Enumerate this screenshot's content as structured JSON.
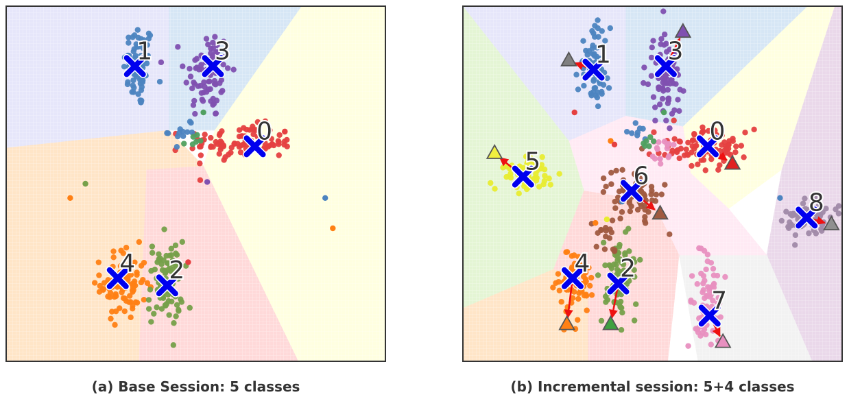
{
  "chart_data": [
    {
      "type": "scatter",
      "caption": "(a) Base Session: 5 classes",
      "xlim": [
        0,
        100
      ],
      "ylim": [
        0,
        100
      ],
      "grid": false,
      "regions": [
        {
          "class": 1,
          "color": "#e6e6fa",
          "polygon": [
            [
              0,
              100
            ],
            [
              43,
              100
            ],
            [
              43,
              65
            ],
            [
              0,
              60
            ]
          ]
        },
        {
          "class": 3,
          "color": "#d6e6f5",
          "polygon": [
            [
              43,
              100
            ],
            [
              78,
              100
            ],
            [
              55,
              65
            ],
            [
              43,
              65
            ]
          ]
        },
        {
          "class": 0,
          "color": "#ffffe0",
          "polygon": [
            [
              78,
              100
            ],
            [
              100,
              100
            ],
            [
              100,
              0
            ],
            [
              77,
              0
            ],
            [
              52,
              55
            ],
            [
              55,
              65
            ]
          ]
        },
        {
          "class": 2,
          "color": "#ffd9d9",
          "polygon": [
            [
              37,
              54
            ],
            [
              52,
              55
            ],
            [
              77,
              0
            ],
            [
              35,
              0
            ]
          ]
        },
        {
          "class": 4,
          "color": "#ffe5c7",
          "polygon": [
            [
              0,
              60
            ],
            [
              43,
              65
            ],
            [
              52,
              55
            ],
            [
              37,
              54
            ],
            [
              35,
              0
            ],
            [
              0,
              0
            ]
          ]
        }
      ],
      "clusters": [
        {
          "label": "1",
          "color": "#4c84c0",
          "cx": 35,
          "cy": 83,
          "sx": 2.0,
          "sy": 6.0,
          "n": 70
        },
        {
          "label": "3",
          "color": "#8050b0",
          "cx": 53,
          "cy": 81,
          "sx": 3.0,
          "sy": 6.5,
          "n": 80
        },
        {
          "label": "0",
          "color": "#e54040",
          "cx": 62,
          "cy": 61.5,
          "sx": 7.0,
          "sy": 2.5,
          "n": 95
        },
        {
          "label": "4",
          "color": "#ff8014",
          "cx": 31,
          "cy": 22,
          "sx": 3.0,
          "sy": 5.0,
          "n": 90
        },
        {
          "label": "2",
          "color": "#76a04a",
          "cx": 42,
          "cy": 22,
          "sx": 2.3,
          "sy": 6.0,
          "n": 80
        },
        {
          "label": "",
          "color": "#4c84c0",
          "cx": 46.5,
          "cy": 65,
          "sx": 1.8,
          "sy": 2.0,
          "n": 12
        },
        {
          "label": "",
          "color": "#50a060",
          "cx": 50,
          "cy": 61.5,
          "sx": 1.5,
          "sy": 1.2,
          "n": 6
        }
      ],
      "outliers": [
        {
          "x": 21,
          "y": 50,
          "color": "#76a04a"
        },
        {
          "x": 17,
          "y": 46,
          "color": "#ff8014"
        },
        {
          "x": 84,
          "y": 46,
          "color": "#4c84c0"
        },
        {
          "x": 86,
          "y": 37.5,
          "color": "#ff8014"
        },
        {
          "x": 53,
          "y": 50.5,
          "color": "#8050b0"
        },
        {
          "x": 48,
          "y": 28,
          "color": "#e54040"
        },
        {
          "x": 52,
          "y": 70,
          "color": "#50a060"
        }
      ],
      "prototypes": [
        {
          "label": "1",
          "x": 34,
          "y": 83
        },
        {
          "label": "3",
          "x": 54.5,
          "y": 83
        },
        {
          "label": "0",
          "x": 65.5,
          "y": 60.5
        },
        {
          "label": "4",
          "x": 29.5,
          "y": 23.5
        },
        {
          "label": "2",
          "x": 42.5,
          "y": 21.5
        }
      ],
      "arrows": []
    },
    {
      "type": "scatter",
      "caption": "(b) Incremental session: 5+4 classes",
      "xlim": [
        0,
        100
      ],
      "ylim": [
        0,
        100
      ],
      "grid": false,
      "regions": [
        {
          "class": 1,
          "color": "#e6e6fa",
          "polygon": [
            [
              0,
              100
            ],
            [
              43,
              100
            ],
            [
              43,
              69
            ],
            [
              28,
              62
            ]
          ]
        },
        {
          "class": 3,
          "color": "#d6e6f5",
          "polygon": [
            [
              43,
              100
            ],
            [
              91,
              100
            ],
            [
              58,
              66
            ],
            [
              43,
              69
            ]
          ]
        },
        {
          "class": 0,
          "color": "#ffffe0",
          "polygon": [
            [
              91,
              100
            ],
            [
              98,
              100
            ],
            [
              84,
              54
            ],
            [
              70,
              43
            ],
            [
              60,
              53
            ],
            [
              58,
              66
            ]
          ]
        },
        {
          "class": 8,
          "color": "#ead8ea",
          "polygon": [
            [
              98,
              100
            ],
            [
              100,
              100
            ],
            [
              100,
              0
            ],
            [
              92,
              0
            ],
            [
              80,
              30
            ],
            [
              84,
              54
            ]
          ]
        },
        {
          "class": 7,
          "color": "#f2f2f2",
          "polygon": [
            [
              57,
              30
            ],
            [
              80,
              30
            ],
            [
              92,
              0
            ],
            [
              62,
              0
            ]
          ]
        },
        {
          "class": 6,
          "color": "#ffeaf4",
          "polygon": [
            [
              28,
              62
            ],
            [
              43,
              69
            ],
            [
              58,
              66
            ],
            [
              60,
              53
            ],
            [
              70,
              43
            ],
            [
              80,
              30
            ],
            [
              57,
              30
            ],
            [
              50,
              45
            ],
            [
              32,
              48
            ]
          ]
        },
        {
          "class": 5,
          "color": "#e4f5d4",
          "polygon": [
            [
              0,
              100
            ],
            [
              28,
              62
            ],
            [
              32,
              48
            ],
            [
              24,
              26
            ],
            [
              0,
              15
            ]
          ]
        },
        {
          "class": 2,
          "color": "#ffd9d9",
          "polygon": [
            [
              32,
              48
            ],
            [
              50,
              45
            ],
            [
              57,
              30
            ],
            [
              54,
              0
            ],
            [
              33,
              0
            ],
            [
              33,
              22
            ],
            [
              24,
              26
            ]
          ]
        },
        {
          "class": 4,
          "color": "#ffe5c7",
          "polygon": [
            [
              0,
              15
            ],
            [
              24,
              26
            ],
            [
              33,
              22
            ],
            [
              33,
              0
            ],
            [
              0,
              0
            ]
          ]
        }
      ],
      "clusters": [
        {
          "label": "1",
          "color": "#4c84c0",
          "cx": 34.5,
          "cy": 83,
          "sx": 2.0,
          "sy": 5.5,
          "n": 70
        },
        {
          "label": "3",
          "color": "#8050b0",
          "cx": 53.5,
          "cy": 80,
          "sx": 2.5,
          "sy": 6.0,
          "n": 80
        },
        {
          "label": "0",
          "color": "#e54040",
          "cx": 64,
          "cy": 60,
          "sx": 6.5,
          "sy": 2.5,
          "n": 90
        },
        {
          "label": "5",
          "color": "#e8ec30",
          "cx": 16.5,
          "cy": 52.5,
          "sx": 3.5,
          "sy": 2.5,
          "n": 70
        },
        {
          "label": "6",
          "color": "#a05a40",
          "cx": 45,
          "cy": 47.5,
          "sx": 3.5,
          "sy": 3.5,
          "n": 70
        },
        {
          "label": "8",
          "color": "#a08aa8",
          "cx": 91,
          "cy": 40,
          "sx": 3.0,
          "sy": 2.5,
          "n": 80
        },
        {
          "label": "4",
          "color": "#ff8014",
          "cx": 30,
          "cy": 22,
          "sx": 2.3,
          "sy": 4.5,
          "n": 70
        },
        {
          "label": "2",
          "color": "#76a04a",
          "cx": 41.5,
          "cy": 24,
          "sx": 2.3,
          "sy": 6.0,
          "n": 80
        },
        {
          "label": "7",
          "color": "#e890c0",
          "cx": 64.5,
          "cy": 17.5,
          "sx": 2.0,
          "sy": 6.0,
          "n": 70
        },
        {
          "label": "",
          "color": "#e890c0",
          "cx": 52,
          "cy": 61,
          "sx": 2.0,
          "sy": 3.0,
          "n": 14
        },
        {
          "label": "",
          "color": "#4c84c0",
          "cx": 45.5,
          "cy": 64,
          "sx": 1.5,
          "sy": 1.5,
          "n": 8
        },
        {
          "label": "",
          "color": "#50a060",
          "cx": 48.5,
          "cy": 60.5,
          "sx": 1.3,
          "sy": 1.5,
          "n": 6
        },
        {
          "label": "",
          "color": "#a05a40",
          "cx": 38,
          "cy": 35,
          "sx": 2.0,
          "sy": 3.0,
          "n": 16
        }
      ],
      "outliers": [
        {
          "x": 52,
          "y": 57,
          "color": "#e890c0"
        },
        {
          "x": 53,
          "y": 70,
          "color": "#50a060"
        },
        {
          "x": 39,
          "y": 62,
          "color": "#ff8014"
        },
        {
          "x": 40,
          "y": 61,
          "color": "#e54040"
        },
        {
          "x": 38,
          "y": 40,
          "color": "#e8ec30"
        },
        {
          "x": 35,
          "y": 39,
          "color": "#ff8014"
        },
        {
          "x": 42,
          "y": 45,
          "color": "#4c84c0"
        },
        {
          "x": 29.5,
          "y": 70,
          "color": "#e54040"
        },
        {
          "x": 83.5,
          "y": 46,
          "color": "#4c84c0"
        }
      ],
      "prototypes": [
        {
          "label": "1",
          "x": 34.5,
          "y": 82
        },
        {
          "label": "3",
          "x": 53.5,
          "y": 83
        },
        {
          "label": "0",
          "x": 64.5,
          "y": 60.5
        },
        {
          "label": "5",
          "x": 16,
          "y": 52
        },
        {
          "label": "6",
          "x": 44.5,
          "y": 48
        },
        {
          "label": "8",
          "x": 90.5,
          "y": 40.5
        },
        {
          "label": "4",
          "x": 29,
          "y": 23.5
        },
        {
          "label": "2",
          "x": 41,
          "y": 22
        },
        {
          "label": "7",
          "x": 65,
          "y": 13
        }
      ],
      "arrows": [
        {
          "class": "1",
          "from": [
            34.5,
            82
          ],
          "to": [
            28,
            84.5
          ],
          "color": "#808080"
        },
        {
          "class": "3",
          "from": [
            53.5,
            83
          ],
          "to": [
            58,
            92.5
          ],
          "color": "#8050b0"
        },
        {
          "class": "0",
          "from": [
            64.5,
            60.5
          ],
          "to": [
            71,
            55.5
          ],
          "color": "#e02020"
        },
        {
          "class": "5",
          "from": [
            16,
            52
          ],
          "to": [
            8.5,
            58.5
          ],
          "color": "#f0f040"
        },
        {
          "class": "6",
          "from": [
            44.5,
            48
          ],
          "to": [
            52,
            41.5
          ],
          "color": "#a05a40"
        },
        {
          "class": "8",
          "from": [
            90.5,
            40.5
          ],
          "to": [
            97,
            38.5
          ],
          "color": "#909090"
        },
        {
          "class": "4",
          "from": [
            29,
            23.5
          ],
          "to": [
            27.5,
            10.5
          ],
          "color": "#ff8014"
        },
        {
          "class": "2",
          "from": [
            41,
            22
          ],
          "to": [
            39,
            10.5
          ],
          "color": "#40a040"
        },
        {
          "class": "7",
          "from": [
            65,
            13
          ],
          "to": [
            68.5,
            5.5
          ],
          "color": "#e890c0"
        }
      ]
    }
  ]
}
